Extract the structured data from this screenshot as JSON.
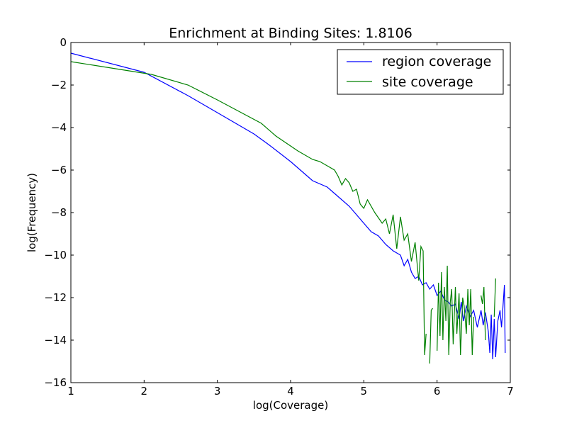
{
  "chart_data": {
    "type": "line",
    "title": "Enrichment at Binding Sites: 1.8106",
    "xlabel": "log(Coverage)",
    "ylabel": "log(Frequency)",
    "xlim": [
      1,
      7
    ],
    "ylim": [
      -16,
      0
    ],
    "xticks": [
      "1",
      "2",
      "3",
      "4",
      "5",
      "6",
      "7"
    ],
    "yticks": [
      "0",
      "−2",
      "−4",
      "−6",
      "−8",
      "−10",
      "−12",
      "−14",
      "−16"
    ],
    "grid": false,
    "legend_position": "top-right",
    "series": [
      {
        "name": "region coverage",
        "color": "#0000ff",
        "points": [
          [
            1,
            -0.5
          ],
          [
            2,
            -1.4
          ],
          [
            2.6,
            -2.5
          ],
          [
            3,
            -3.3
          ],
          [
            3.5,
            -4.3
          ],
          [
            3.7,
            -4.8
          ],
          [
            4,
            -5.6
          ],
          [
            4.2,
            -6.2
          ],
          [
            4.3,
            -6.5
          ],
          [
            4.5,
            -6.8
          ],
          [
            4.6,
            -7.1
          ],
          [
            4.8,
            -7.7
          ],
          [
            4.9,
            -8.1
          ],
          [
            5,
            -8.5
          ],
          [
            5.1,
            -8.9
          ],
          [
            5.2,
            -9.1
          ],
          [
            5.3,
            -9.5
          ],
          [
            5.4,
            -9.8
          ],
          [
            5.5,
            -10.0
          ],
          [
            5.55,
            -10.5
          ],
          [
            5.6,
            -10.2
          ],
          [
            5.65,
            -10.8
          ],
          [
            5.7,
            -11.1
          ],
          [
            5.75,
            -11.0
          ],
          [
            5.8,
            -11.4
          ],
          [
            5.85,
            -11.3
          ],
          [
            5.9,
            -11.6
          ],
          [
            5.95,
            -11.4
          ],
          [
            6.0,
            -11.9
          ],
          [
            6.05,
            -11.7
          ],
          [
            6.1,
            -12.1
          ],
          [
            6.15,
            -12.2
          ],
          [
            6.2,
            -12.4
          ],
          [
            6.25,
            -12.3
          ],
          [
            6.3,
            -13.0
          ],
          [
            6.33,
            -12.2
          ],
          [
            6.36,
            -13.1
          ],
          [
            6.4,
            -12.4
          ],
          [
            6.45,
            -12.9
          ],
          [
            6.5,
            -12.6
          ],
          [
            6.55,
            -13.4
          ],
          [
            6.6,
            -12.6
          ],
          [
            6.63,
            -13.3
          ],
          [
            6.66,
            -12.7
          ],
          [
            6.7,
            -13.6
          ],
          [
            6.72,
            -14.6
          ],
          [
            6.74,
            -12.8
          ],
          [
            6.76,
            -14.9
          ],
          [
            6.78,
            -13.0
          ],
          [
            6.8,
            -14.8
          ],
          [
            6.83,
            -13.1
          ],
          [
            6.86,
            -12.6
          ],
          [
            6.88,
            -13.4
          ],
          [
            6.9,
            -12.4
          ],
          [
            6.92,
            -11.4
          ],
          [
            6.93,
            -14.6
          ]
        ]
      },
      {
        "name": "site coverage",
        "color": "#008000",
        "points": [
          [
            1,
            -0.9
          ],
          [
            2.1,
            -1.5
          ],
          [
            2.6,
            -2.0
          ],
          [
            3,
            -2.7
          ],
          [
            3.6,
            -3.8
          ],
          [
            3.8,
            -4.4
          ],
          [
            4.1,
            -5.1
          ],
          [
            4.3,
            -5.5
          ],
          [
            4.4,
            -5.6
          ],
          [
            4.5,
            -5.8
          ],
          [
            4.6,
            -6.0
          ],
          [
            4.65,
            -6.3
          ],
          [
            4.7,
            -6.7
          ],
          [
            4.75,
            -6.4
          ],
          [
            4.8,
            -6.6
          ],
          [
            4.85,
            -7.0
          ],
          [
            4.9,
            -6.9
          ],
          [
            4.95,
            -7.6
          ],
          [
            5.0,
            -7.8
          ],
          [
            5.05,
            -7.4
          ],
          [
            5.15,
            -8.0
          ],
          [
            5.25,
            -8.5
          ],
          [
            5.3,
            -8.3
          ],
          [
            5.35,
            -9.0
          ],
          [
            5.4,
            -8.1
          ],
          [
            5.45,
            -9.7
          ],
          [
            5.5,
            -8.2
          ],
          [
            5.55,
            -9.3
          ],
          [
            5.6,
            -9.0
          ],
          [
            5.65,
            -10.3
          ],
          [
            5.7,
            -9.4
          ],
          [
            5.75,
            -11.2
          ],
          [
            5.78,
            -9.6
          ],
          [
            5.81,
            -9.8
          ],
          [
            5.83,
            -14.7
          ],
          [
            5.85,
            -13.7
          ],
          null,
          [
            5.9,
            -15.1
          ],
          [
            5.92,
            -12.6
          ],
          [
            5.94,
            -12.5
          ],
          null,
          [
            6.0,
            -14.5
          ],
          [
            6.02,
            -11.3
          ],
          [
            6.04,
            -13.8
          ],
          [
            6.06,
            -10.8
          ],
          [
            6.08,
            -14.0
          ],
          [
            6.1,
            -11.5
          ],
          [
            6.12,
            -13.1
          ],
          [
            6.14,
            -10.5
          ],
          [
            6.16,
            -14.7
          ],
          [
            6.18,
            -12.2
          ],
          [
            6.2,
            -11.6
          ],
          [
            6.22,
            -14.2
          ],
          [
            6.25,
            -11.5
          ],
          [
            6.27,
            -13.7
          ],
          [
            6.3,
            -11.8
          ],
          [
            6.32,
            -14.7
          ],
          [
            6.35,
            -12.0
          ],
          [
            6.37,
            -12.4
          ],
          [
            6.4,
            -13.7
          ],
          [
            6.42,
            -11.6
          ],
          [
            6.44,
            -13.3
          ],
          [
            6.46,
            -11.6
          ],
          [
            6.48,
            -14.7
          ],
          [
            6.5,
            -12.9
          ],
          null,
          [
            6.6,
            -11.9
          ],
          [
            6.62,
            -12.3
          ],
          [
            6.64,
            -11.5
          ],
          [
            6.66,
            -14.0
          ],
          null,
          [
            6.78,
            -12.9
          ],
          [
            6.8,
            -11.1
          ]
        ]
      }
    ]
  }
}
